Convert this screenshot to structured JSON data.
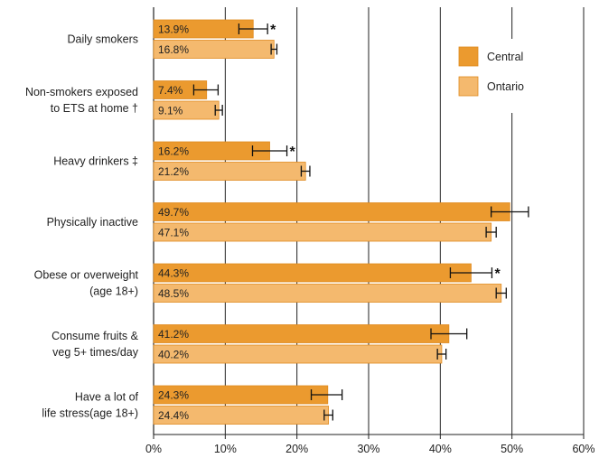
{
  "chart_data": {
    "type": "bar",
    "orientation": "horizontal",
    "title": "",
    "xlabel": "",
    "ylabel": "",
    "xlim": [
      0,
      60
    ],
    "x_ticks": [
      "0%",
      "10%",
      "20%",
      "30%",
      "40%",
      "50%",
      "60%"
    ],
    "grid": "vertical",
    "legend_position": "top-right",
    "categories": [
      [
        "Daily smokers"
      ],
      [
        "Non-smokers exposed",
        "to ETS at home †"
      ],
      [
        "Heavy drinkers ‡"
      ],
      [
        "Physically inactive"
      ],
      [
        "Obese or overweight",
        "(age 18+)"
      ],
      [
        "Consume fruits &",
        "veg 5+ times/day"
      ],
      [
        "Have a lot of",
        "life stress(age 18+)"
      ]
    ],
    "series": [
      {
        "name": "Central",
        "color": "#eb9a2f",
        "values": [
          13.9,
          7.4,
          16.2,
          49.7,
          44.3,
          41.2,
          24.3
        ],
        "labels": [
          "13.9%",
          "7.4%",
          "16.2%",
          "49.7%",
          "44.3%",
          "41.2%",
          "24.3%"
        ],
        "ci_low": [
          11.9,
          5.6,
          13.8,
          47.1,
          41.4,
          38.7,
          22.0
        ],
        "ci_high": [
          15.9,
          9.0,
          18.6,
          52.3,
          47.2,
          43.7,
          26.3
        ],
        "significant": [
          true,
          false,
          true,
          false,
          true,
          false,
          false
        ]
      },
      {
        "name": "Ontario",
        "color": "#f4b96e",
        "values": [
          16.8,
          9.1,
          21.2,
          47.1,
          48.5,
          40.2,
          24.4
        ],
        "labels": [
          "16.8%",
          "9.1%",
          "21.2%",
          "47.1%",
          "48.5%",
          "40.2%",
          "24.4%"
        ],
        "ci_low": [
          16.4,
          8.6,
          20.6,
          46.4,
          47.8,
          39.6,
          23.8
        ],
        "ci_high": [
          17.2,
          9.6,
          21.8,
          47.8,
          49.2,
          40.8,
          25.0
        ]
      }
    ],
    "significance_marker": "*"
  }
}
